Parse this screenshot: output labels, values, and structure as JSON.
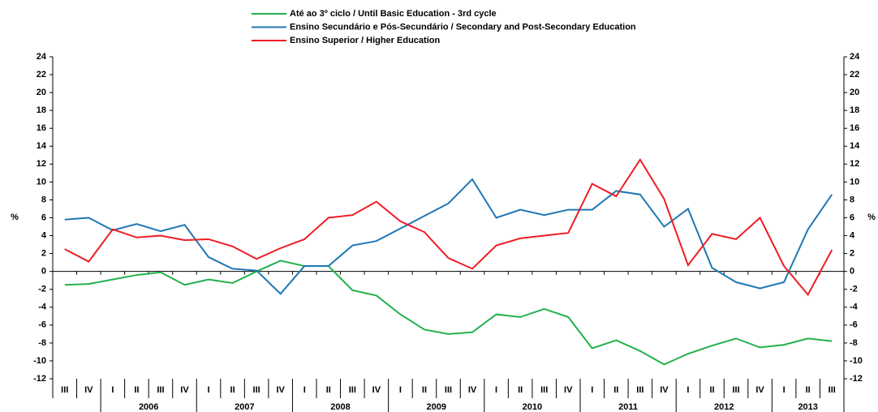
{
  "chart_data": {
    "type": "line",
    "categories": [
      "III",
      "IV",
      "I",
      "II",
      "III",
      "IV",
      "I",
      "II",
      "III",
      "IV",
      "I",
      "II",
      "III",
      "IV",
      "I",
      "II",
      "III",
      "IV",
      "I",
      "II",
      "III",
      "IV",
      "I",
      "II",
      "III",
      "IV",
      "I",
      "II",
      "III",
      "IV",
      "I",
      "II",
      "III"
    ],
    "years": [
      "2006",
      "2007",
      "2008",
      "2009",
      "2010",
      "2011",
      "2012",
      "2013"
    ],
    "ylabel": "%",
    "y2label": "%",
    "ylim": [
      -12,
      24
    ],
    "yticks": [
      -12,
      -10,
      -8,
      -6,
      -4,
      -2,
      0,
      2,
      4,
      6,
      8,
      10,
      12,
      14,
      16,
      18,
      20,
      22,
      24
    ],
    "y2lim": [
      -12,
      24
    ],
    "y2ticks": [
      -12,
      -10,
      -8,
      -6,
      -4,
      -2,
      0,
      2,
      4,
      6,
      8,
      10,
      12,
      14,
      16,
      18,
      20,
      22,
      24
    ],
    "series": [
      {
        "name": "Até ao 3º ciclo / Until Basic Education - 3rd cycle",
        "color": "#22b14c",
        "values": [
          -1.5,
          -1.4,
          -0.9,
          -0.4,
          -0.1,
          -1.5,
          -0.9,
          -1.3,
          0.0,
          1.2,
          0.6,
          0.6,
          -2.1,
          -2.7,
          -4.8,
          -6.5,
          -7.0,
          -6.8,
          -4.8,
          -5.1,
          -4.2,
          -5.1,
          -8.6,
          -7.7,
          -8.9,
          -10.4,
          -9.2,
          -8.3,
          -7.5,
          -8.5,
          -8.2,
          -7.5,
          -7.8
        ]
      },
      {
        "name": "Ensino Secundário e Pós-Secundário / Secondary and Post-Secondary Education",
        "color": "#1f77b4",
        "values": [
          5.8,
          6.0,
          4.6,
          5.3,
          4.5,
          5.2,
          1.6,
          0.3,
          0.1,
          -2.5,
          0.6,
          0.6,
          2.9,
          3.4,
          4.8,
          6.2,
          7.6,
          10.3,
          6.0,
          6.9,
          6.3,
          6.9,
          6.9,
          9.0,
          8.6,
          5.0,
          7.0,
          0.4,
          -1.2,
          -1.9,
          -1.2,
          4.7,
          8.6
        ]
      },
      {
        "name": "Ensino Superior / Higher Education",
        "color": "#ee1c24",
        "values": [
          2.5,
          1.1,
          4.7,
          3.8,
          4.0,
          3.5,
          3.6,
          2.8,
          1.4,
          2.6,
          3.6,
          6.0,
          6.3,
          7.8,
          5.6,
          4.4,
          1.5,
          0.3,
          2.9,
          3.7,
          4.0,
          4.3,
          9.8,
          8.4,
          12.5,
          8.1,
          0.7,
          4.2,
          3.6,
          6.0,
          0.6,
          -2.6,
          2.4
        ]
      }
    ]
  }
}
